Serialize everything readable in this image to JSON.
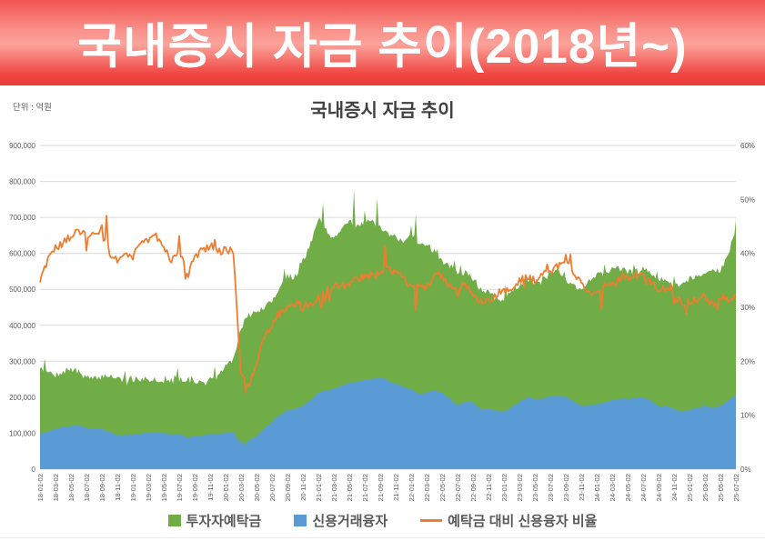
{
  "banner": {
    "title": "국내증시 자금 추이(2018년~)"
  },
  "chart": {
    "title": "국내증시 자금 추이",
    "unit_label": "단위 : 억원"
  },
  "chart_data": {
    "type": "area",
    "x_months": {
      "start": "2018-01",
      "end": "2025-07",
      "count": 91
    },
    "x_tick_labels": [
      "18-01-02",
      "18-03-02",
      "18-05-02",
      "18-07-02",
      "18-09-02",
      "18-11-02",
      "19-01-02",
      "19-03-02",
      "19-05-02",
      "19-07-02",
      "19-09-02",
      "19-11-02",
      "20-01-02",
      "20-03-02",
      "20-05-02",
      "20-07-02",
      "20-09-02",
      "20-11-02",
      "21-01-02",
      "21-03-02",
      "21-05-02",
      "21-07-02",
      "21-09-02",
      "21-11-02",
      "22-01-02",
      "22-03-02",
      "22-05-02",
      "22-07-02",
      "22-09-02",
      "22-11-02",
      "23-01-02",
      "23-03-02",
      "23-05-02",
      "23-07-02",
      "23-09-02",
      "23-11-02",
      "24-01-02",
      "24-03-02",
      "24-05-02",
      "24-07-02",
      "24-09-02",
      "24-11-02",
      "25-01-02",
      "25-03-02",
      "25-05-02",
      "25-07-02"
    ],
    "left_axis": {
      "min": 0,
      "max": 900000,
      "step": 100000,
      "tick_labels": [
        "0",
        "100,000",
        "200,000",
        "300,000",
        "400,000",
        "500,000",
        "600,000",
        "700,000",
        "800,000",
        "900,000"
      ]
    },
    "right_axis": {
      "min": 0,
      "max": 60,
      "step": 10,
      "tick_labels": [
        "0%",
        "10%",
        "20%",
        "30%",
        "40%",
        "50%",
        "60%"
      ]
    },
    "grid": true,
    "legend_position": "bottom",
    "series": [
      {
        "name": "투자자예탁금",
        "type": "area",
        "axis": "left",
        "color": "#70AD47",
        "values": [
          285000,
          270000,
          262000,
          272000,
          278000,
          270000,
          255000,
          250000,
          258000,
          262000,
          252000,
          248000,
          252000,
          248000,
          250000,
          252000,
          242000,
          246000,
          248000,
          252000,
          242000,
          238000,
          244000,
          256000,
          288000,
          305000,
          395000,
          430000,
          435000,
          450000,
          465000,
          510000,
          540000,
          530000,
          580000,
          625000,
          700000,
          655000,
          645000,
          670000,
          690000,
          675000,
          690000,
          685000,
          670000,
          650000,
          645000,
          635000,
          660000,
          620000,
          630000,
          605000,
          580000,
          565000,
          548000,
          545000,
          530000,
          500000,
          495000,
          470000,
          475000,
          500000,
          512000,
          530000,
          520000,
          522000,
          545000,
          552000,
          528000,
          510000,
          500000,
          522000,
          545000,
          542000,
          552000,
          558000,
          548000,
          552000,
          558000,
          548000,
          532000,
          522000,
          512000,
          515000,
          530000,
          538000,
          548000,
          555000,
          548000,
          600000,
          665000
        ]
      },
      {
        "name": "신용거래융자",
        "type": "area",
        "axis": "left",
        "color": "#5B9BD5",
        "values": [
          99000,
          104000,
          112000,
          116000,
          119000,
          122000,
          115000,
          112000,
          112000,
          104000,
          94000,
          94000,
          95000,
          99000,
          101000,
          102000,
          101000,
          95000,
          97000,
          88000,
          91000,
          93000,
          96000,
          98000,
          101000,
          103000,
          72000,
          80000,
          92000,
          112000,
          131000,
          152000,
          163000,
          168000,
          176000,
          192000,
          213000,
          218000,
          222000,
          232000,
          240000,
          243000,
          248000,
          252000,
          254000,
          245000,
          237000,
          230000,
          222000,
          208000,
          213000,
          219000,
          212000,
          196000,
          178000,
          188000,
          186000,
          166000,
          167000,
          164000,
          160000,
          172000,
          186000,
          200000,
          196000,
          196000,
          201000,
          205000,
          200000,
          189000,
          175000,
          176000,
          180000,
          185000,
          191000,
          196000,
          195000,
          199000,
          201000,
          190000,
          176000,
          176000,
          166000,
          160000,
          164000,
          170000,
          176000,
          170000,
          176000,
          190000,
          206000
        ]
      },
      {
        "name": "예탁금 대비 신용융자 비율",
        "type": "line",
        "axis": "right",
        "color": "#ED7D31",
        "values": [
          35.0,
          38.5,
          41.0,
          42.0,
          42.5,
          44.5,
          43.0,
          43.5,
          45.5,
          40.0,
          38.5,
          40.0,
          39.5,
          41.5,
          42.5,
          43.5,
          41.0,
          38.5,
          41.0,
          36.5,
          39.5,
          40.5,
          41.5,
          40.0,
          41.0,
          40.0,
          18.0,
          15.0,
          19.5,
          24.5,
          27.0,
          29.0,
          30.0,
          31.0,
          30.0,
          30.5,
          31.0,
          33.0,
          34.0,
          34.0,
          34.5,
          35.5,
          35.5,
          36.0,
          37.0,
          37.0,
          36.5,
          36.0,
          33.5,
          33.5,
          33.8,
          36.0,
          36.0,
          34.0,
          32.5,
          34.0,
          32.0,
          31.0,
          31.5,
          32.5,
          33.0,
          33.5,
          35.0,
          35.5,
          35.0,
          36.0,
          36.5,
          37.5,
          39.3,
          36.5,
          34.5,
          33.0,
          32.5,
          34.0,
          34.5,
          35.0,
          35.5,
          36.0,
          36.0,
          34.5,
          33.0,
          33.6,
          32.2,
          30.8,
          30.8,
          31.5,
          32.0,
          30.5,
          32.0,
          31.6,
          31.8
        ]
      }
    ],
    "notable_points": [
      {
        "series": "투자자예탁금",
        "month": "2018-01",
        "value": 308000
      },
      {
        "series": "투자자예탁금",
        "month": "2020-08",
        "value": 558000
      },
      {
        "series": "투자자예탁금",
        "month": "2021-01",
        "value": 742000
      },
      {
        "series": "투자자예탁금",
        "month": "2021-05",
        "value": 778000
      },
      {
        "series": "투자자예탁금",
        "month": "2021-08",
        "value": 752000
      },
      {
        "series": "투자자예탁금",
        "month": "2022-01",
        "value": 708000
      },
      {
        "series": "투자자예탁금",
        "month": "2025-07",
        "value": 693000
      },
      {
        "series": "신용거래융자",
        "month": "2020-03",
        "value": 64000
      },
      {
        "series": "신용거래융자",
        "month": "2021-09",
        "value": 256000
      },
      {
        "series": "예탁금 대비 신용융자 비율",
        "month": "2018-09",
        "value": 47.0
      },
      {
        "series": "예탁금 대비 신용융자 비율",
        "month": "2020-03",
        "value": 14.2
      },
      {
        "series": "예탁금 대비 신용융자 비율",
        "month": "2021-09",
        "value": 41.5
      },
      {
        "series": "예탁금 대비 신용융자 비율",
        "month": "2022-01",
        "value": 29.4
      },
      {
        "series": "예탁금 대비 신용융자 비율",
        "month": "2023-09",
        "value": 39.8
      },
      {
        "series": "예탁금 대비 신용융자 비율",
        "month": "2024-01",
        "value": 29.7
      },
      {
        "series": "예탁금 대비 신용융자 비율",
        "month": "2024-12",
        "value": 28.7
      },
      {
        "series": "예탁금 대비 신용융자 비율",
        "month": "2025-04",
        "value": 29.6
      }
    ]
  },
  "legend": {
    "items": [
      {
        "label": "투자자예탁금"
      },
      {
        "label": "신용거래융자"
      },
      {
        "label": "예탁금 대비 신용융자 비율"
      }
    ]
  }
}
